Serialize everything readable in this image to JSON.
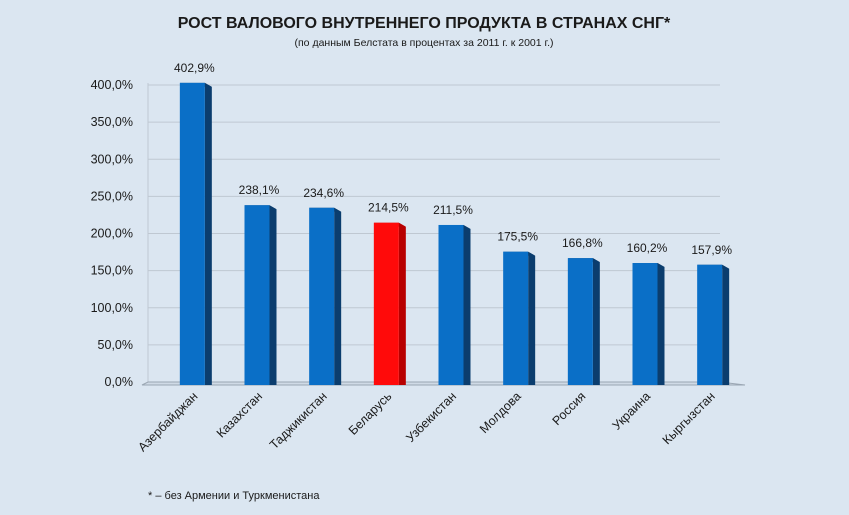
{
  "chart_data": {
    "type": "bar",
    "title": "РОСТ ВАЛОВОГО ВНУТРЕННЕГО ПРОДУКТА В СТРАНАХ СНГ*",
    "subtitle": "(по данным Белстата в процентах за 2011 г. к 2001 г.)",
    "categories": [
      "Азербайджан",
      "Казахстан",
      "Таджикистан",
      "Беларусь",
      "Узбекистан",
      "Молдова",
      "Россия",
      "Украина",
      "Кыргызстан"
    ],
    "values": [
      402.9,
      238.1,
      234.6,
      214.5,
      211.5,
      175.5,
      166.8,
      160.2,
      157.9
    ],
    "value_labels": [
      "402,9%",
      "238,1%",
      "234,6%",
      "214,5%",
      "211,5%",
      "175,5%",
      "166,8%",
      "160,2%",
      "157,9%"
    ],
    "ylim": [
      0,
      400
    ],
    "yticks": [
      0,
      50,
      100,
      150,
      200,
      250,
      300,
      350,
      400
    ],
    "ytick_labels": [
      "0,0%",
      "50,0%",
      "100,0%",
      "150,0%",
      "200,0%",
      "250,0%",
      "300,0%",
      "350,0%",
      "400,0%"
    ],
    "grid": true,
    "highlight_category": "Беларусь",
    "colors": {
      "bar": "#0a6fc7",
      "bar_side": "#0b3d6e",
      "highlight": "#ff0a0a",
      "highlight_side": "#b80000",
      "grid": "#bfc8d2",
      "background": "#dbe6f1"
    },
    "footnote": "* – без Армении и Туркменистана"
  }
}
